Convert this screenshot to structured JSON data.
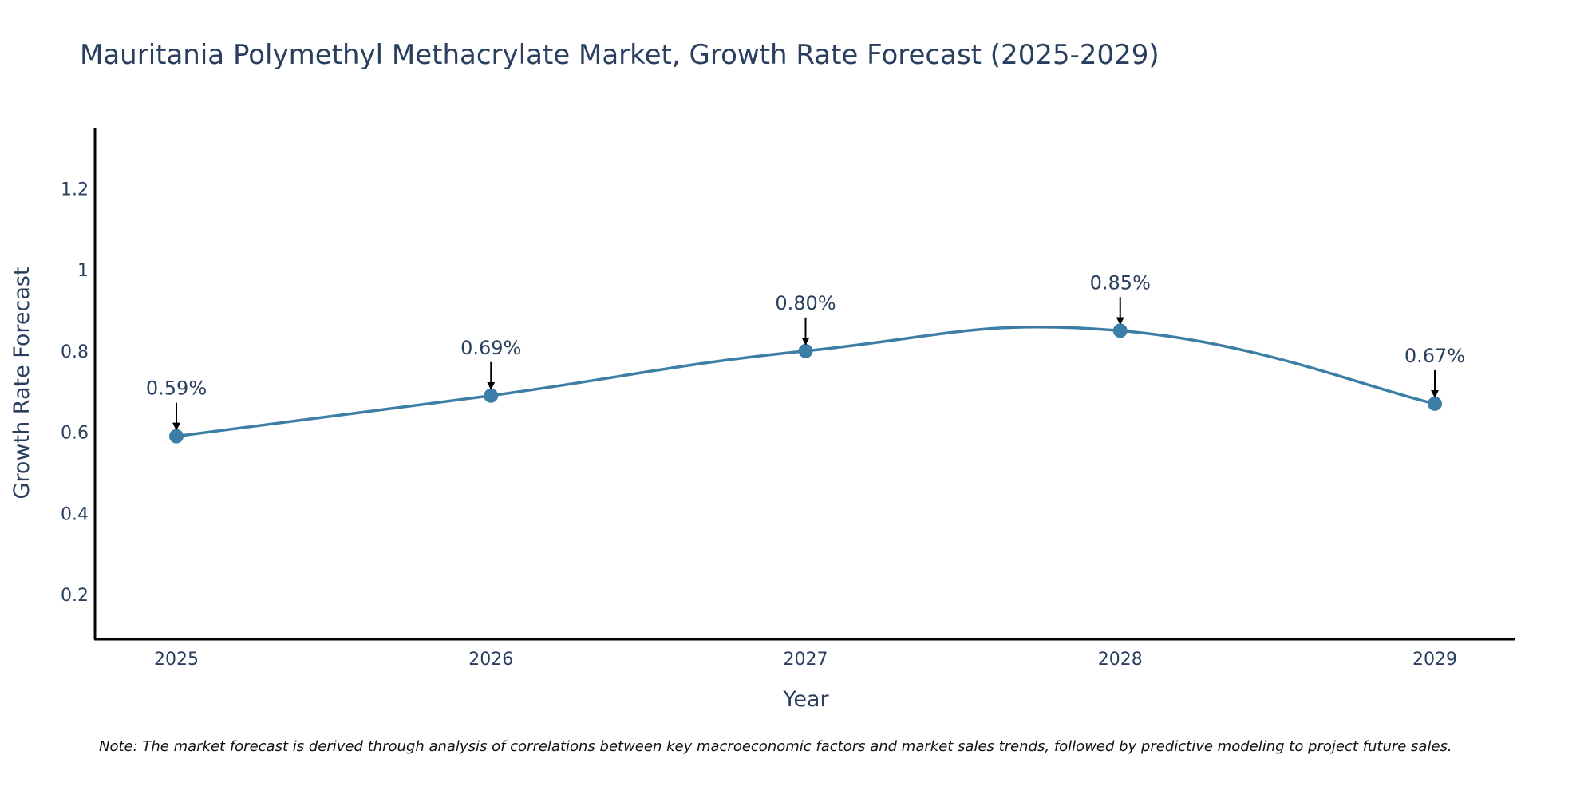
{
  "chart_data": {
    "type": "line",
    "title": "Mauritania Polymethyl Methacrylate Market, Growth Rate Forecast (2025-2029)",
    "xlabel": "Year",
    "ylabel": "Growth Rate Forecast",
    "categories": [
      "2025",
      "2026",
      "2027",
      "2028",
      "2029"
    ],
    "values": [
      0.59,
      0.69,
      0.8,
      0.85,
      0.67
    ],
    "data_labels": [
      "0.59%",
      "0.69%",
      "0.80%",
      "0.85%",
      "0.67%"
    ],
    "y_ticks": [
      "0.2",
      "0.4",
      "0.6",
      "0.8",
      "1",
      "1.2"
    ],
    "y_tick_values": [
      0.2,
      0.4,
      0.6,
      0.8,
      1.0,
      1.2
    ],
    "ylim": [
      0.09,
      1.35
    ],
    "grid": false,
    "line_color": "#3d7ea6",
    "marker_color": "#3d7ea6",
    "note": "Note: The market forecast is derived through analysis of correlations between key macroeconomic factors and market sales trends, followed by predictive modeling to project future sales."
  }
}
